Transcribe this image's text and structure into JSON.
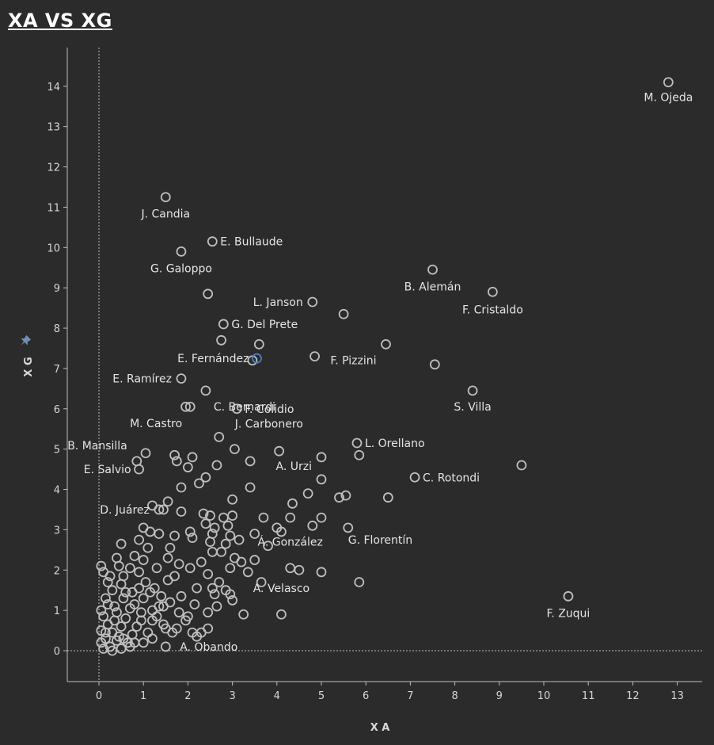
{
  "colors": {
    "background": "#2b2b2b",
    "axis": "#bdbdbd",
    "point": "#bebebe",
    "highlight": "#4a7fc1",
    "text": "#e4e4e4"
  },
  "icons": {
    "pin": "pin-icon"
  },
  "chart_data": {
    "type": "scatter",
    "title": "XA VS XG",
    "xlabel": "X A",
    "ylabel": "X G",
    "xlim": [
      -0.7,
      13.5
    ],
    "ylim": [
      -0.8,
      15
    ],
    "xticks": [
      0,
      1,
      2,
      3,
      4,
      5,
      6,
      7,
      8,
      9,
      10,
      11,
      12,
      13
    ],
    "yticks": [
      0,
      1,
      2,
      3,
      4,
      5,
      6,
      7,
      8,
      9,
      10,
      11,
      12,
      13,
      14
    ],
    "zero_lines": true,
    "grid": false,
    "labeled_points": [
      {
        "name": "M. Ojeda",
        "x": 12.8,
        "y": 14.1
      },
      {
        "name": "J. Candia",
        "x": 1.5,
        "y": 11.25
      },
      {
        "name": "E. Bullaude",
        "x": 2.55,
        "y": 10.15
      },
      {
        "name": "G. Galoppo",
        "x": 1.85,
        "y": 9.9
      },
      {
        "name": "B. Alemán",
        "x": 7.5,
        "y": 9.45
      },
      {
        "name": "F. Cristaldo",
        "x": 8.85,
        "y": 8.9
      },
      {
        "name": "L. Janson",
        "x": 4.8,
        "y": 8.65
      },
      {
        "name": "G. Del Prete",
        "x": 2.8,
        "y": 8.1
      },
      {
        "name": "E. Fernández",
        "x": 3.55,
        "y": 7.25,
        "highlight": true
      },
      {
        "name": "F. Pizzini",
        "x": 6.45,
        "y": 7.6
      },
      {
        "name": "E. Ramírez",
        "x": 1.85,
        "y": 6.75
      },
      {
        "name": "C. Bernardi",
        "x": 2.4,
        "y": 6.45
      },
      {
        "name": "S. Villa",
        "x": 8.4,
        "y": 6.45
      },
      {
        "name": "F. Colidio",
        "x": 3.1,
        "y": 6.0
      },
      {
        "name": "M. Castro",
        "x": 2.05,
        "y": 6.05
      },
      {
        "name": "J. Carbonero",
        "x": 2.7,
        "y": 5.3
      },
      {
        "name": "B. Mansilla",
        "x": 0.85,
        "y": 4.7
      },
      {
        "name": "L. Orellano",
        "x": 5.8,
        "y": 5.15
      },
      {
        "name": "E. Salvio",
        "x": 0.9,
        "y": 4.5
      },
      {
        "name": "A. Urzi",
        "x": 5.0,
        "y": 4.25
      },
      {
        "name": "C. Rotondi",
        "x": 7.1,
        "y": 4.3
      },
      {
        "name": "D. Juárez",
        "x": 1.35,
        "y": 3.5
      },
      {
        "name": "G. Florentín",
        "x": 5.6,
        "y": 3.05
      },
      {
        "name": "Á. González",
        "x": 4.3,
        "y": 2.05
      },
      {
        "name": "A. Velasco",
        "x": 4.1,
        "y": 0.9
      },
      {
        "name": "F. Zuqui",
        "x": 10.55,
        "y": 1.35
      },
      {
        "name": "A. Obando",
        "x": 1.5,
        "y": 0.1
      }
    ],
    "other_points": [
      [
        2.45,
        8.85
      ],
      [
        5.5,
        8.35
      ],
      [
        2.75,
        7.7
      ],
      [
        3.6,
        7.6
      ],
      [
        4.85,
        7.3
      ],
      [
        7.55,
        7.1
      ],
      [
        3.45,
        7.2
      ],
      [
        1.95,
        6.05
      ],
      [
        9.5,
        4.6
      ],
      [
        5.85,
        4.85
      ],
      [
        4.05,
        4.95
      ],
      [
        3.05,
        5.0
      ],
      [
        3.4,
        4.7
      ],
      [
        2.65,
        4.6
      ],
      [
        5.0,
        4.8
      ],
      [
        2.1,
        4.8
      ],
      [
        1.7,
        4.85
      ],
      [
        1.05,
        4.9
      ],
      [
        1.75,
        4.7
      ],
      [
        2.0,
        4.55
      ],
      [
        2.4,
        4.3
      ],
      [
        2.25,
        4.15
      ],
      [
        1.85,
        4.05
      ],
      [
        3.4,
        4.05
      ],
      [
        4.7,
        3.9
      ],
      [
        5.55,
        3.85
      ],
      [
        5.4,
        3.8
      ],
      [
        6.5,
        3.8
      ],
      [
        3.0,
        3.75
      ],
      [
        1.55,
        3.7
      ],
      [
        4.35,
        3.65
      ],
      [
        1.2,
        3.6
      ],
      [
        1.45,
        3.5
      ],
      [
        1.85,
        3.45
      ],
      [
        2.35,
        3.4
      ],
      [
        2.5,
        3.35
      ],
      [
        2.8,
        3.3
      ],
      [
        3.0,
        3.35
      ],
      [
        3.7,
        3.3
      ],
      [
        4.3,
        3.3
      ],
      [
        5.0,
        3.3
      ],
      [
        2.4,
        3.15
      ],
      [
        2.6,
        3.05
      ],
      [
        2.9,
        3.1
      ],
      [
        4.0,
        3.05
      ],
      [
        4.1,
        2.95
      ],
      [
        4.8,
        3.1
      ],
      [
        1.0,
        3.05
      ],
      [
        1.15,
        2.95
      ],
      [
        1.35,
        2.9
      ],
      [
        1.7,
        2.85
      ],
      [
        2.05,
        2.95
      ],
      [
        2.55,
        2.9
      ],
      [
        2.95,
        2.85
      ],
      [
        3.5,
        2.9
      ],
      [
        0.9,
        2.75
      ],
      [
        2.1,
        2.8
      ],
      [
        2.5,
        2.7
      ],
      [
        2.85,
        2.65
      ],
      [
        3.15,
        2.75
      ],
      [
        0.5,
        2.65
      ],
      [
        1.1,
        2.55
      ],
      [
        3.8,
        2.6
      ],
      [
        1.6,
        2.55
      ],
      [
        2.55,
        2.45
      ],
      [
        2.75,
        2.45
      ],
      [
        0.4,
        2.3
      ],
      [
        0.8,
        2.35
      ],
      [
        1.0,
        2.25
      ],
      [
        1.55,
        2.3
      ],
      [
        3.05,
        2.3
      ],
      [
        3.2,
        2.2
      ],
      [
        3.5,
        2.25
      ],
      [
        2.3,
        2.2
      ],
      [
        0.45,
        2.1
      ],
      [
        0.7,
        2.05
      ],
      [
        1.3,
        2.05
      ],
      [
        1.8,
        2.15
      ],
      [
        2.05,
        2.05
      ],
      [
        2.95,
        2.05
      ],
      [
        4.5,
        2.0
      ],
      [
        5.0,
        1.95
      ],
      [
        0.05,
        2.1
      ],
      [
        0.1,
        1.95
      ],
      [
        0.25,
        1.85
      ],
      [
        0.55,
        1.85
      ],
      [
        0.9,
        1.95
      ],
      [
        1.7,
        1.85
      ],
      [
        2.45,
        1.9
      ],
      [
        3.35,
        1.95
      ],
      [
        0.2,
        1.7
      ],
      [
        0.5,
        1.65
      ],
      [
        1.05,
        1.7
      ],
      [
        1.55,
        1.75
      ],
      [
        2.7,
        1.7
      ],
      [
        3.65,
        1.7
      ],
      [
        5.85,
        1.7
      ],
      [
        0.3,
        1.5
      ],
      [
        0.75,
        1.45
      ],
      [
        1.25,
        1.55
      ],
      [
        2.2,
        1.55
      ],
      [
        2.55,
        1.55
      ],
      [
        2.85,
        1.5
      ],
      [
        0.15,
        1.3
      ],
      [
        0.55,
        1.3
      ],
      [
        1.0,
        1.3
      ],
      [
        1.4,
        1.35
      ],
      [
        1.85,
        1.35
      ],
      [
        2.6,
        1.4
      ],
      [
        2.95,
        1.4
      ],
      [
        0.35,
        1.1
      ],
      [
        0.8,
        1.15
      ],
      [
        1.6,
        1.2
      ],
      [
        2.15,
        1.15
      ],
      [
        2.45,
        0.95
      ],
      [
        0.05,
        1.0
      ],
      [
        0.4,
        0.95
      ],
      [
        1.2,
        1.0
      ],
      [
        0.1,
        0.85
      ],
      [
        0.6,
        0.8
      ],
      [
        0.95,
        0.75
      ],
      [
        1.3,
        0.85
      ],
      [
        2.0,
        0.85
      ],
      [
        3.25,
        0.9
      ],
      [
        0.2,
        0.65
      ],
      [
        0.5,
        0.6
      ],
      [
        1.45,
        0.65
      ],
      [
        1.75,
        0.55
      ],
      [
        2.45,
        0.55
      ],
      [
        0.05,
        0.5
      ],
      [
        0.3,
        0.45
      ],
      [
        0.75,
        0.4
      ],
      [
        1.1,
        0.45
      ],
      [
        2.1,
        0.45
      ],
      [
        2.3,
        0.45
      ],
      [
        0.15,
        0.3
      ],
      [
        0.4,
        0.25
      ],
      [
        0.65,
        0.2
      ],
      [
        1.0,
        0.2
      ],
      [
        1.2,
        0.3
      ],
      [
        0.05,
        0.2
      ],
      [
        0.25,
        0.1
      ],
      [
        0.5,
        0.05
      ],
      [
        0.7,
        0.1
      ],
      [
        0.1,
        0.05
      ],
      [
        0.3,
        0.0
      ],
      [
        1.45,
        1.1
      ],
      [
        1.8,
        0.95
      ],
      [
        2.2,
        0.35
      ],
      [
        0.6,
        1.45
      ],
      [
        0.9,
        1.55
      ],
      [
        1.15,
        1.45
      ],
      [
        1.35,
        1.1
      ],
      [
        0.45,
        0.35
      ],
      [
        0.85,
        0.6
      ],
      [
        1.65,
        0.45
      ],
      [
        1.95,
        0.75
      ],
      [
        2.65,
        1.1
      ],
      [
        3.0,
        1.25
      ],
      [
        0.2,
        1.15
      ],
      [
        0.35,
        0.75
      ],
      [
        0.7,
        1.05
      ],
      [
        0.95,
        0.95
      ],
      [
        1.2,
        0.75
      ],
      [
        1.5,
        0.55
      ],
      [
        0.15,
        0.45
      ],
      [
        0.55,
        0.3
      ],
      [
        0.8,
        0.2
      ]
    ]
  }
}
